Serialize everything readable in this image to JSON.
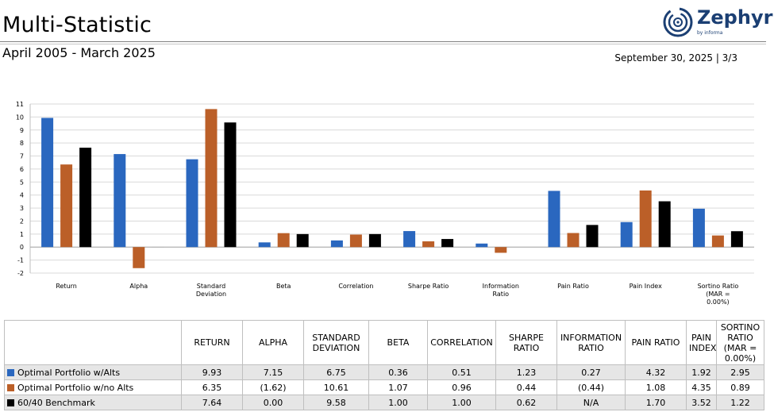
{
  "header": {
    "title": "Multi-Statistic",
    "date_range": "April 2005 - March 2025",
    "as_of": "September 30, 2025 | 3/3",
    "logo_text": "Zephyr",
    "logo_sub": "by informa"
  },
  "colors": {
    "series1": "#2a67bf",
    "series2": "#bb5f28",
    "series3": "#000000"
  },
  "chart_data": {
    "type": "bar",
    "categories": [
      [
        "Return"
      ],
      [
        "Alpha"
      ],
      [
        "Standard",
        "Deviation"
      ],
      [
        "Beta"
      ],
      [
        "Correlation"
      ],
      [
        "Sharpe Ratio"
      ],
      [
        "Information",
        "Ratio"
      ],
      [
        "Pain Ratio"
      ],
      [
        "Pain Index"
      ],
      [
        "Sortino Ratio",
        "(MAR =",
        "0.00%)"
      ]
    ],
    "series": [
      {
        "values": [
          9.93,
          7.15,
          6.75,
          0.36,
          0.51,
          1.23,
          0.27,
          4.32,
          1.92,
          2.95
        ]
      },
      {
        "values": [
          6.35,
          -1.62,
          10.61,
          1.07,
          0.96,
          0.44,
          -0.44,
          1.08,
          4.35,
          0.89
        ]
      },
      {
        "values": [
          7.64,
          0.0,
          9.58,
          1.0,
          1.0,
          0.62,
          null,
          1.7,
          3.52,
          1.22
        ]
      }
    ],
    "ylim": [
      -2,
      11
    ],
    "yticks": [
      -2,
      -1,
      0,
      1,
      2,
      3,
      4,
      5,
      6,
      7,
      8,
      9,
      10,
      11
    ],
    "grid": true
  },
  "table": {
    "headers": [
      "RETURN",
      "ALPHA",
      "STANDARD DEVIATION",
      "BETA",
      "CORRELATION",
      "SHARPE RATIO",
      "INFORMATION RATIO",
      "PAIN RATIO",
      "PAIN INDEX",
      "SORTINO RATIO (MAR = 0.00%)"
    ],
    "rows": [
      {
        "name": "Optimal Portfolio w/Alts",
        "cells": [
          "9.93",
          "7.15",
          "6.75",
          "0.36",
          "0.51",
          "1.23",
          "0.27",
          "4.32",
          "1.92",
          "2.95"
        ]
      },
      {
        "name": "Optimal Portfolio w/no Alts",
        "cells": [
          "6.35",
          "(1.62)",
          "10.61",
          "1.07",
          "0.96",
          "0.44",
          "(0.44)",
          "1.08",
          "4.35",
          "0.89"
        ]
      },
      {
        "name": "60/40 Benchmark",
        "cells": [
          "7.64",
          "0.00",
          "9.58",
          "1.00",
          "1.00",
          "0.62",
          "N/A",
          "1.70",
          "3.52",
          "1.22"
        ]
      }
    ]
  }
}
